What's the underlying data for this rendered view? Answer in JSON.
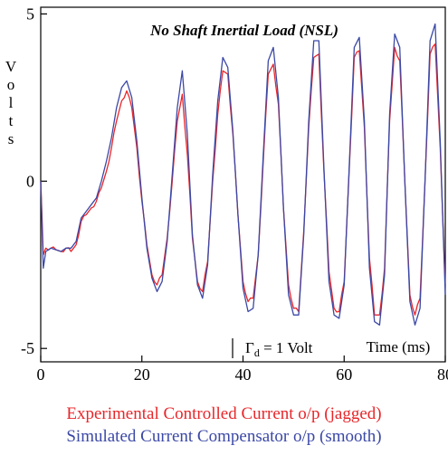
{
  "chart_data": {
    "type": "line",
    "title": "No Shaft Inertial Load (NSL)",
    "xlabel": "Time (ms)",
    "ylabel": "Volts",
    "xlim": [
      0,
      80
    ],
    "ylim": [
      -5.4,
      5.2
    ],
    "x_ticks": [
      0,
      20,
      40,
      60,
      80
    ],
    "x_tick_labels": [
      "0",
      "20",
      "40",
      "60",
      "80"
    ],
    "y_ticks": [
      -5,
      0,
      5
    ],
    "y_tick_labels": [
      "-5",
      "0",
      "5"
    ],
    "annotation": {
      "prefix": "Γ",
      "subscript": "d",
      "suffix": " = 1 Volt"
    },
    "grid": false,
    "series": [
      {
        "name": "Experimental Controlled Current o/p (jagged)",
        "color": "#e8262a",
        "jagged": true,
        "x": [
          0,
          0.5,
          1,
          2,
          3,
          4,
          5,
          6,
          7,
          8,
          9,
          10,
          11,
          12,
          13,
          14,
          15,
          16,
          17,
          18,
          19,
          20,
          21,
          22,
          23,
          24,
          25,
          26,
          27,
          28,
          29,
          30,
          31,
          32,
          33,
          34,
          35,
          36,
          37,
          38,
          39,
          40,
          41,
          42,
          43,
          44,
          45,
          46,
          47,
          48,
          49,
          50,
          51,
          52,
          53,
          54,
          55,
          56,
          57,
          58,
          59,
          60,
          61,
          62,
          63,
          64,
          65,
          66,
          67,
          68,
          69,
          70,
          71,
          72,
          73,
          74,
          75,
          76,
          77,
          78,
          79,
          80
        ],
        "y": [
          0,
          -2.2,
          -2.0,
          -2.0,
          -2.05,
          -2.1,
          -2.0,
          -2.1,
          -1.9,
          -1.2,
          -1.0,
          -0.8,
          -0.6,
          -0.2,
          0.3,
          1.0,
          1.8,
          2.4,
          2.7,
          2.2,
          1.0,
          -0.6,
          -1.9,
          -2.8,
          -3.1,
          -2.8,
          -1.7,
          0.0,
          1.8,
          2.6,
          0.8,
          -1.7,
          -3.0,
          -3.3,
          -2.4,
          0.0,
          2.0,
          3.3,
          3.2,
          1.4,
          -1.0,
          -3.0,
          -3.6,
          -3.5,
          -2.2,
          0.6,
          3.2,
          3.5,
          2.3,
          -0.8,
          -3.1,
          -3.8,
          -3.9,
          -1.5,
          1.6,
          3.7,
          3.8,
          0.3,
          -2.7,
          -3.8,
          -3.9,
          -3.0,
          0.3,
          3.7,
          3.9,
          1.6,
          -2.3,
          -4.0,
          -4.0,
          -2.6,
          1.8,
          4.0,
          3.6,
          0.0,
          -3.4,
          -4.0,
          -3.5,
          0.0,
          3.8,
          4.1,
          1.0,
          -3.1
        ]
      },
      {
        "name": "Simulated Current Compensator o/p (smooth)",
        "color": "#3b48a6",
        "jagged": false,
        "x": [
          0,
          0.5,
          1,
          2,
          3,
          4,
          5,
          6,
          7,
          8,
          9,
          10,
          11,
          12,
          13,
          14,
          15,
          16,
          17,
          18,
          19,
          20,
          21,
          22,
          23,
          24,
          25,
          26,
          27,
          28,
          29,
          30,
          31,
          32,
          33,
          34,
          35,
          36,
          37,
          38,
          39,
          40,
          41,
          42,
          43,
          44,
          45,
          46,
          47,
          48,
          49,
          50,
          51,
          52,
          53,
          54,
          55,
          56,
          57,
          58,
          59,
          60,
          61,
          62,
          63,
          64,
          65,
          66,
          67,
          68,
          69,
          70,
          71,
          72,
          73,
          74,
          75,
          76,
          77,
          78,
          79,
          80
        ],
        "y": [
          0,
          -2.6,
          -2.1,
          -2.0,
          -2.05,
          -2.1,
          -2.0,
          -2.0,
          -1.8,
          -1.1,
          -0.9,
          -0.7,
          -0.5,
          0.0,
          0.6,
          1.3,
          2.2,
          2.8,
          3.0,
          2.5,
          1.2,
          -0.5,
          -2.0,
          -2.9,
          -3.3,
          -3.0,
          -1.8,
          0.2,
          2.2,
          3.3,
          1.4,
          -1.6,
          -3.1,
          -3.5,
          -2.5,
          0.2,
          2.4,
          3.7,
          3.4,
          1.5,
          -1.0,
          -3.2,
          -3.9,
          -3.8,
          -2.2,
          0.8,
          3.6,
          4.0,
          2.5,
          -0.8,
          -3.4,
          -4.0,
          -4.0,
          -1.6,
          1.8,
          4.2,
          4.2,
          0.4,
          -3.0,
          -4.0,
          -4.1,
          -3.1,
          0.4,
          4.0,
          4.3,
          1.8,
          -2.6,
          -4.2,
          -4.3,
          -2.8,
          2.0,
          4.4,
          4.0,
          0.0,
          -3.6,
          -4.3,
          -3.8,
          0.0,
          4.2,
          4.7,
          1.2,
          -3.4
        ]
      }
    ]
  }
}
